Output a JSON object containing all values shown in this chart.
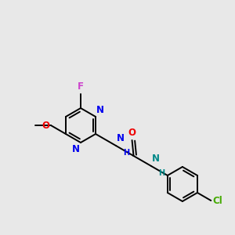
{
  "bg": "#E8E8E8",
  "bond_color": "#000000",
  "lw": 1.4,
  "atom_colors": {
    "F": "#CC44CC",
    "N": "#0000EE",
    "O": "#EE0000",
    "Cl": "#44AA00",
    "NH": "#0000EE",
    "NH2": "#008888"
  },
  "font_size": 8.5,
  "font_size_small": 7.0
}
